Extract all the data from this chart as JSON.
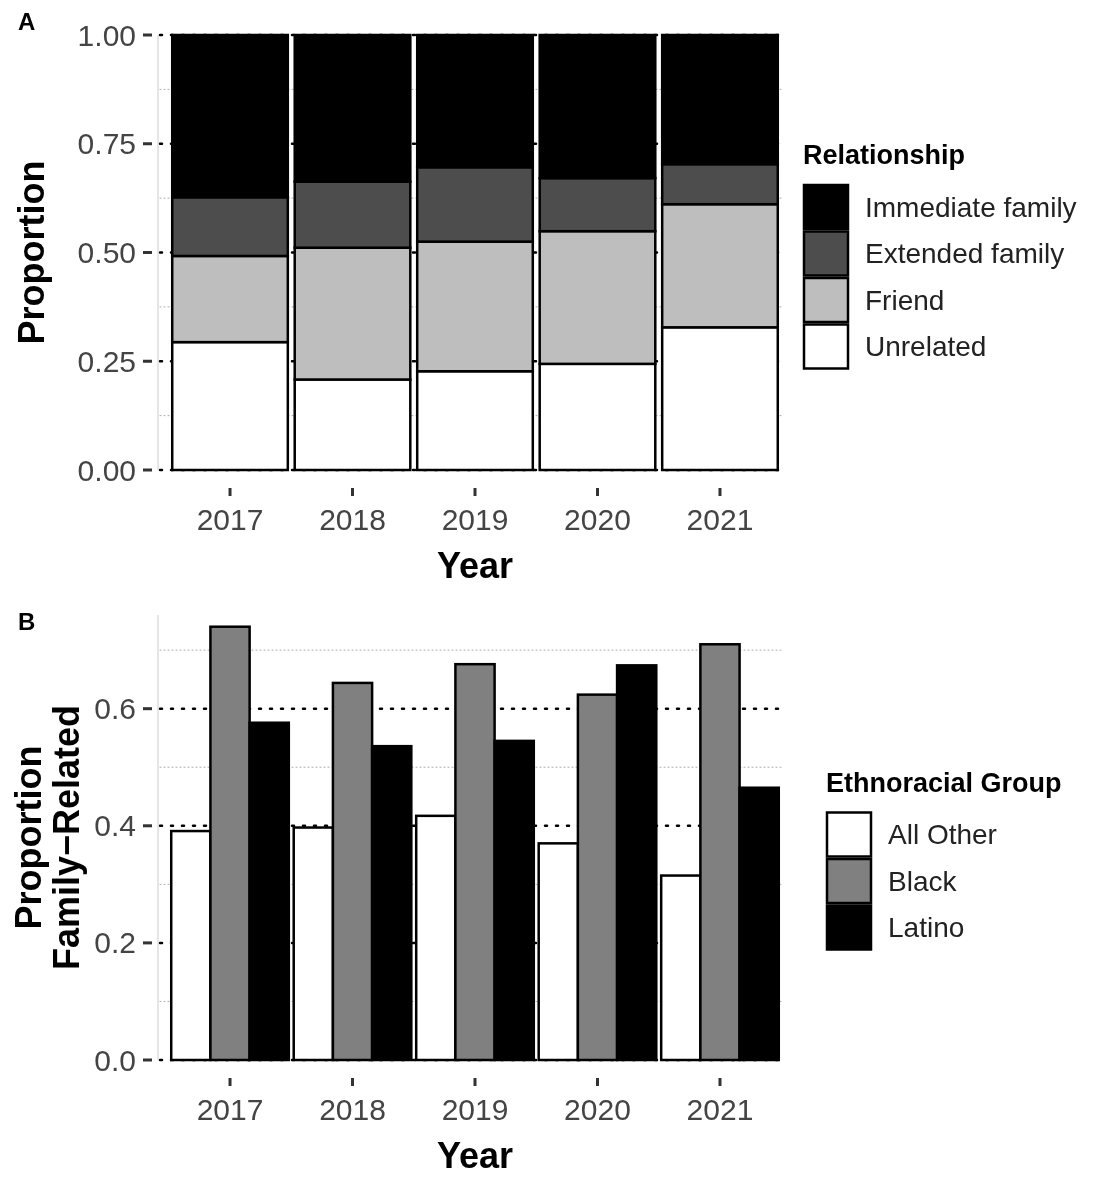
{
  "chart_data": [
    {
      "type": "bar",
      "stacked": true,
      "annotations": [
        "A"
      ],
      "xlabel": "Year",
      "ylabel": "Proportion",
      "legend_title": "Relationship",
      "legend": "right",
      "grid": "y",
      "categories": [
        "2017",
        "2018",
        "2019",
        "2020",
        "2021"
      ],
      "ylim": [
        0,
        1
      ],
      "yticks": [
        {
          "value": 0,
          "label": "0.00"
        },
        {
          "value": 0.125,
          "label": null
        },
        {
          "value": 0.25,
          "label": "0.25"
        },
        {
          "value": 0.375,
          "label": null
        },
        {
          "value": 0.5,
          "label": "0.50"
        },
        {
          "value": 0.625,
          "label": null
        },
        {
          "value": 0.75,
          "label": "0.75"
        },
        {
          "value": 0.875,
          "label": null
        },
        {
          "value": 1,
          "label": "1.00"
        }
      ],
      "series": [
        {
          "name": "Unrelated",
          "color": "#ffffff",
          "values": [
            0.294,
            0.208,
            0.227,
            0.244,
            0.328
          ]
        },
        {
          "name": "Friend",
          "color": "#bebebe",
          "values": [
            0.198,
            0.303,
            0.298,
            0.305,
            0.283
          ]
        },
        {
          "name": "Extended family",
          "color": "#4d4d4d",
          "values": [
            0.135,
            0.152,
            0.171,
            0.122,
            0.092
          ]
        },
        {
          "name": "Immediate family",
          "color": "#000000",
          "values": [
            0.373,
            0.337,
            0.304,
            0.329,
            0.297
          ]
        }
      ]
    },
    {
      "type": "bar",
      "annotations": [
        "B"
      ],
      "xlabel": "Year",
      "ylabel": "Proportion\nFamily−Related",
      "legend_title": "Ethnoracial Group",
      "legend": "right",
      "grid": "y",
      "categories": [
        "2017",
        "2018",
        "2019",
        "2020",
        "2021"
      ],
      "ylim": [
        0,
        0.76
      ],
      "yticks": [
        {
          "value": 0,
          "label": "0.0"
        },
        {
          "value": 0.1,
          "label": null
        },
        {
          "value": 0.2,
          "label": "0.2"
        },
        {
          "value": 0.3,
          "label": null
        },
        {
          "value": 0.4,
          "label": "0.4"
        },
        {
          "value": 0.5,
          "label": null
        },
        {
          "value": 0.6,
          "label": "0.6"
        },
        {
          "value": 0.7,
          "label": null
        }
      ],
      "series": [
        {
          "name": "All Other",
          "color": "#ffffff",
          "values": [
            0.391,
            0.397,
            0.417,
            0.37,
            0.315
          ]
        },
        {
          "name": "Black",
          "color": "#808080",
          "values": [
            0.74,
            0.644,
            0.676,
            0.624,
            0.71
          ]
        },
        {
          "name": "Latino",
          "color": "#000000",
          "values": [
            0.576,
            0.536,
            0.545,
            0.674,
            0.465
          ]
        }
      ]
    }
  ]
}
